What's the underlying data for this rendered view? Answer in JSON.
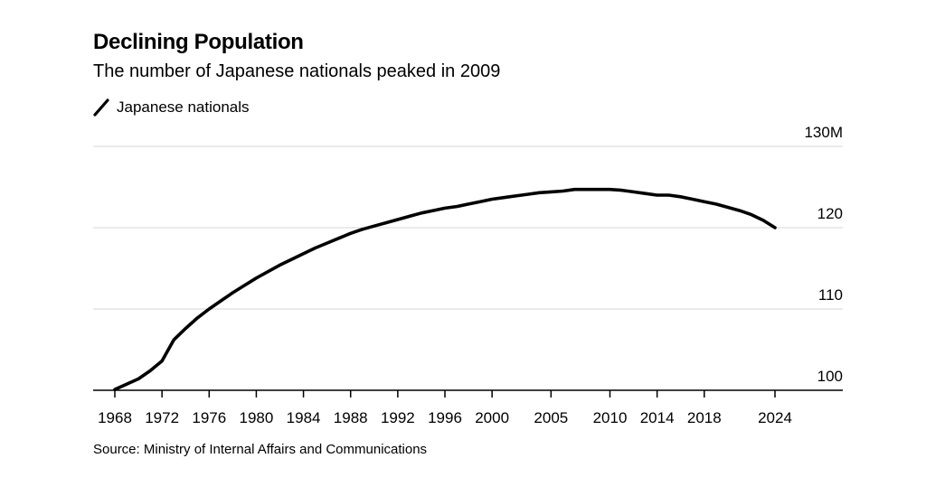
{
  "chart_data": {
    "type": "line",
    "title": "Declining Population",
    "subtitle": "The number of Japanese nationals peaked in 2009",
    "series": [
      {
        "name": "Japanese nationals",
        "color": "#000000",
        "x": [
          1968,
          1970,
          1971,
          1972,
          1973,
          1974,
          1975,
          1976,
          1977,
          1978,
          1979,
          1980,
          1981,
          1982,
          1983,
          1984,
          1985,
          1986,
          1987,
          1988,
          1989,
          1990,
          1991,
          1992,
          1993,
          1994,
          1995,
          1996,
          1997,
          1998,
          1999,
          2000,
          2001,
          2002,
          2003,
          2004,
          2005,
          2006,
          2007,
          2008,
          2009,
          2010,
          2011,
          2012,
          2013,
          2014,
          2015,
          2016,
          2017,
          2018,
          2019,
          2020,
          2021,
          2022,
          2023,
          2024
        ],
        "values": [
          100.1,
          101.4,
          102.4,
          103.6,
          106.2,
          107.6,
          108.9,
          110.0,
          111.0,
          112.0,
          112.9,
          113.8,
          114.6,
          115.4,
          116.1,
          116.8,
          117.5,
          118.1,
          118.7,
          119.3,
          119.8,
          120.2,
          120.6,
          121.0,
          121.4,
          121.8,
          122.1,
          122.4,
          122.6,
          122.9,
          123.2,
          123.5,
          123.7,
          123.9,
          124.1,
          124.3,
          124.4,
          124.5,
          124.7,
          124.7,
          124.7,
          124.7,
          124.6,
          124.4,
          124.2,
          124.0,
          124.0,
          123.8,
          123.5,
          123.2,
          122.9,
          122.5,
          122.1,
          121.6,
          120.9,
          120.0
        ]
      }
    ],
    "yaxis": {
      "min": 100,
      "max": 130,
      "ticks": [
        100,
        110,
        120,
        130
      ],
      "tick_labels": [
        "100",
        "110",
        "120",
        "130M"
      ],
      "position": "right"
    },
    "xaxis": {
      "tick_values": [
        1968,
        1972,
        1976,
        1980,
        1984,
        1988,
        1992,
        1996,
        2000,
        2005,
        2010,
        2014,
        2018,
        2024
      ],
      "tick_labels": [
        "1968",
        "1972",
        "1976",
        "1980",
        "1984",
        "1988",
        "1992",
        "1996",
        "2000",
        "2005",
        "2010",
        "2014",
        "2018",
        "2024"
      ]
    },
    "grid": true,
    "legend": {
      "placement": "top-left"
    },
    "source": "Source: Ministry of Internal Affairs and Communications"
  }
}
